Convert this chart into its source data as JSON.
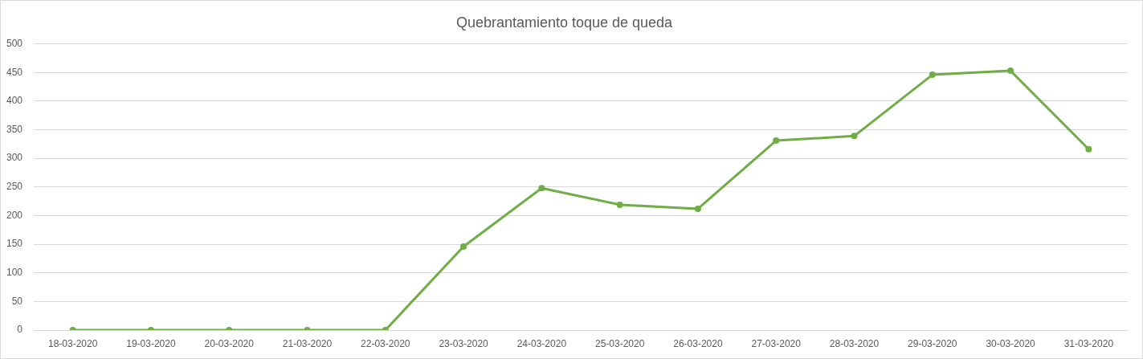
{
  "chart_data": {
    "type": "line",
    "title": "Quebrantamiento toque de queda",
    "categories": [
      "18-03-2020",
      "19-03-2020",
      "20-03-2020",
      "21-03-2020",
      "22-03-2020",
      "23-03-2020",
      "24-03-2020",
      "25-03-2020",
      "26-03-2020",
      "27-03-2020",
      "28-03-2020",
      "29-03-2020",
      "30-03-2020",
      "31-03-2020"
    ],
    "series": [
      {
        "color": "#70ad47",
        "values": [
          0,
          0,
          0,
          0,
          0,
          146,
          248,
          219,
          212,
          331,
          339,
          446,
          453,
          316
        ]
      }
    ],
    "ylim": [
      0,
      500
    ],
    "yticks": [
      0,
      50,
      100,
      150,
      200,
      250,
      300,
      350,
      400,
      450,
      500
    ],
    "grid": "y",
    "legend": false,
    "marker": "circle"
  }
}
